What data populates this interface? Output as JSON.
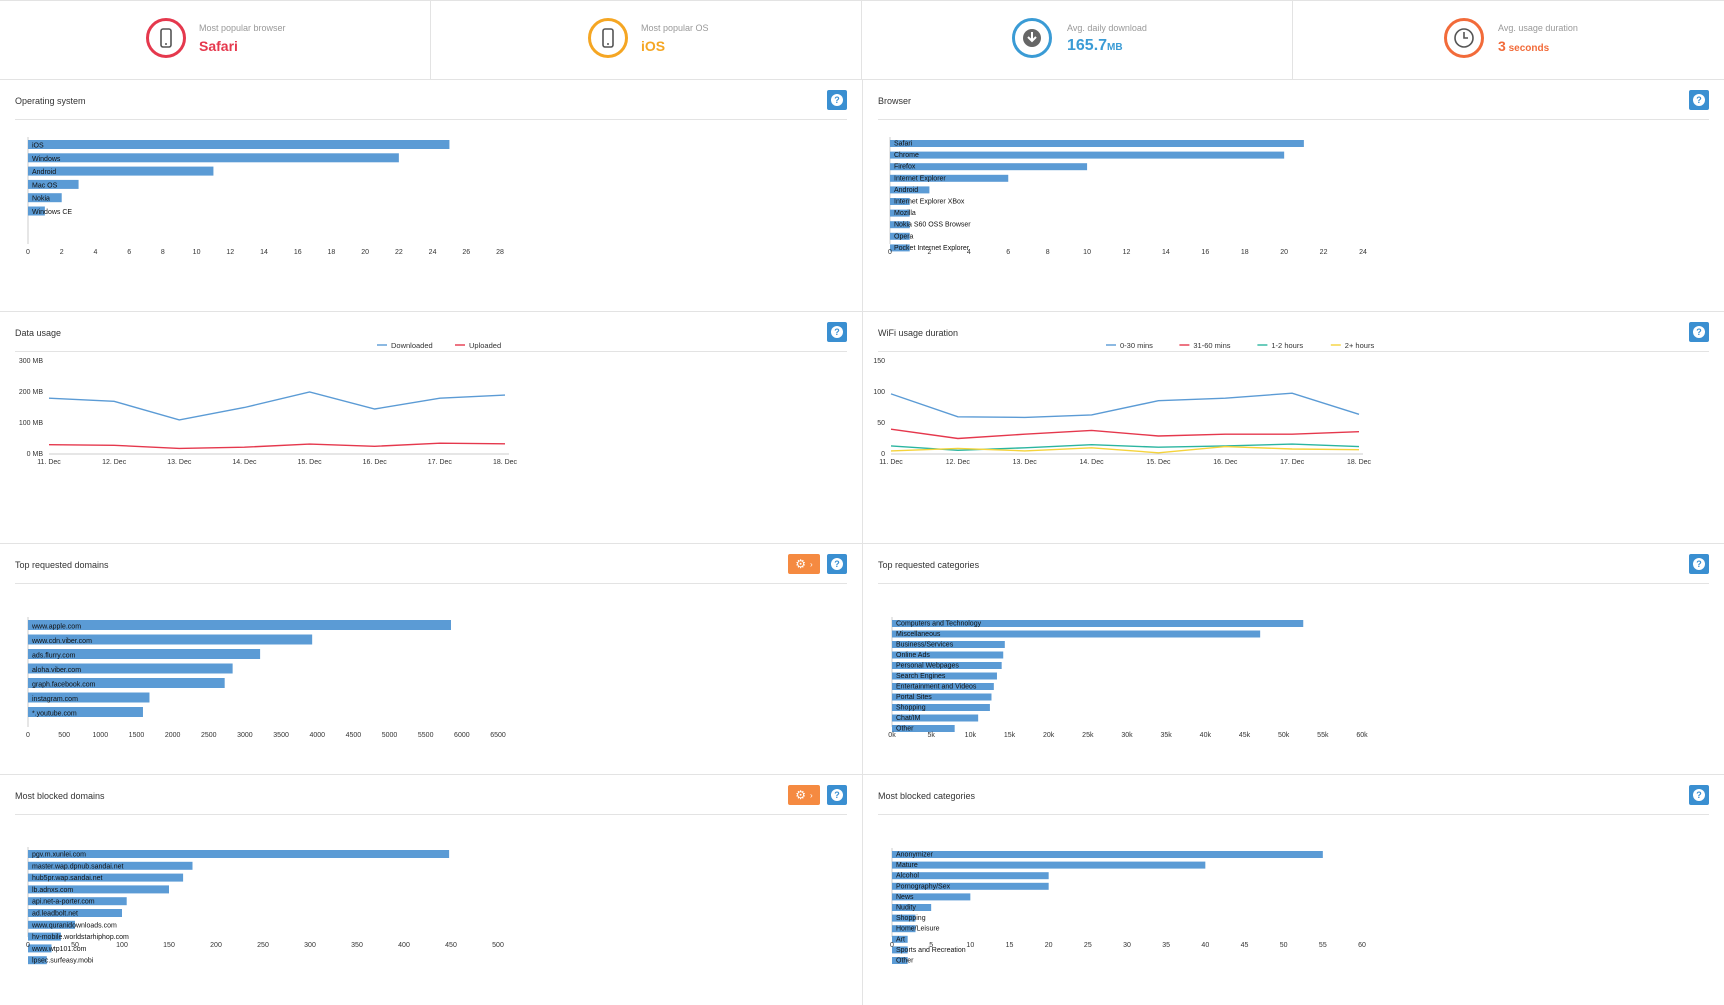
{
  "stats": [
    {
      "label": "Most popular browser",
      "value": "Safari",
      "unit": "",
      "color": "#e5384d",
      "icon": "phone-icon"
    },
    {
      "label": "Most popular OS",
      "value": "iOS",
      "unit": "",
      "color": "#f5a623",
      "icon": "phone-icon"
    },
    {
      "label": "Avg. daily download",
      "value": "165.7",
      "unit": "MB",
      "color": "#3a9bd5",
      "icon": "download-icon"
    },
    {
      "label": "Avg. usage duration",
      "value": "3",
      "unit": " seconds",
      "color": "#f26b3a",
      "icon": "clock-icon"
    }
  ],
  "panels": {
    "os": {
      "title": "Operating system"
    },
    "browser": {
      "title": "Browser"
    },
    "data_usage": {
      "title": "Data usage"
    },
    "wifi": {
      "title": "WiFi usage duration"
    },
    "domains": {
      "title": "Top requested domains"
    },
    "categories": {
      "title": "Top requested categories"
    },
    "blocked_domains": {
      "title": "Most blocked domains"
    },
    "blocked_categories": {
      "title": "Most blocked categories"
    }
  },
  "help_label": "?",
  "chart_data": [
    {
      "id": "os",
      "type": "bar",
      "orientation": "horizontal",
      "bar_color": "#5b9bd5",
      "categories": [
        "iOS",
        "Windows",
        "Android",
        "Mac OS",
        "Nokia",
        "Windows CE"
      ],
      "values": [
        25,
        22,
        11,
        3,
        2,
        1
      ],
      "xlim": [
        0,
        28
      ],
      "ticks": [
        0,
        2,
        4,
        6,
        8,
        10,
        12,
        14,
        16,
        18,
        20,
        22,
        24,
        26,
        28
      ],
      "tick_labels": [
        "0",
        "2",
        "4",
        "6",
        "8",
        "10",
        "12",
        "14",
        "16",
        "18",
        "20",
        "22",
        "24",
        "26",
        "28"
      ]
    },
    {
      "id": "browser",
      "type": "bar",
      "orientation": "horizontal",
      "bar_color": "#5b9bd5",
      "categories": [
        "Safari",
        "Chrome",
        "Firefox",
        "Internet Explorer",
        "Android",
        "Internet Explorer XBox",
        "Mozilla",
        "Nokia S60 OSS Browser",
        "Opera",
        "Pocket Internet Explorer"
      ],
      "values": [
        21,
        20,
        10,
        6,
        2,
        1,
        1,
        1,
        1,
        1
      ],
      "xlim": [
        0,
        24
      ],
      "ticks": [
        0,
        2,
        4,
        6,
        8,
        10,
        12,
        14,
        16,
        18,
        20,
        22,
        24
      ],
      "tick_labels": [
        "0",
        "2",
        "4",
        "6",
        "8",
        "10",
        "12",
        "14",
        "16",
        "18",
        "20",
        "22",
        "24"
      ]
    },
    {
      "id": "data_usage",
      "type": "line",
      "x": [
        "11. Dec",
        "12. Dec",
        "13. Dec",
        "14. Dec",
        "15. Dec",
        "16. Dec",
        "17. Dec",
        "18. Dec"
      ],
      "series": [
        {
          "name": "Downloaded",
          "color": "#5b9bd5",
          "values": [
            180,
            170,
            110,
            150,
            200,
            145,
            180,
            190
          ]
        },
        {
          "name": "Uploaded",
          "color": "#e5384d",
          "values": [
            30,
            28,
            18,
            22,
            32,
            25,
            35,
            33
          ]
        }
      ],
      "ylim": [
        0,
        300
      ],
      "yticks": [
        0,
        100,
        200,
        300
      ],
      "ytick_labels": [
        "0 MB",
        "100 MB",
        "200 MB",
        "300 MB"
      ],
      "legend": "top-right"
    },
    {
      "id": "wifi",
      "type": "line",
      "x": [
        "11. Dec",
        "12. Dec",
        "13. Dec",
        "14. Dec",
        "15. Dec",
        "16. Dec",
        "17. Dec",
        "18. Dec"
      ],
      "series": [
        {
          "name": "0-30 mins",
          "color": "#5b9bd5",
          "values": [
            97,
            60,
            59,
            63,
            86,
            90,
            98,
            64
          ]
        },
        {
          "name": "31-60 mins",
          "color": "#e5384d",
          "values": [
            40,
            25,
            32,
            38,
            29,
            32,
            32,
            36
          ]
        },
        {
          "name": "1-2 hours",
          "color": "#2bb5a0",
          "values": [
            13,
            6,
            10,
            15,
            11,
            13,
            16,
            12
          ]
        },
        {
          "name": "2+ hours",
          "color": "#f5d33b",
          "values": [
            5,
            9,
            5,
            10,
            2,
            12,
            8,
            7
          ]
        }
      ],
      "ylim": [
        0,
        150
      ],
      "yticks": [
        0,
        50,
        100,
        150
      ],
      "ytick_labels": [
        "0",
        "50",
        "100",
        "150"
      ],
      "legend": "top-right"
    },
    {
      "id": "domains",
      "type": "bar",
      "orientation": "horizontal",
      "bar_color": "#5b9bd5",
      "categories": [
        "www.apple.com",
        "www.cdn.viber.com",
        "ads.flurry.com",
        "aloha.viber.com",
        "graph.facebook.com",
        "instagram.com",
        "*.youtube.com"
      ],
      "values": [
        5850,
        3930,
        3210,
        2830,
        2720,
        1680,
        1590
      ],
      "xlim": [
        0,
        6500
      ],
      "ticks": [
        0,
        500,
        1000,
        1500,
        2000,
        2500,
        3000,
        3500,
        4000,
        4500,
        5000,
        5500,
        6000,
        6500
      ],
      "tick_labels": [
        "0",
        "500",
        "1000",
        "1500",
        "2000",
        "2500",
        "3000",
        "3500",
        "4000",
        "4500",
        "5000",
        "5500",
        "6000",
        "6500"
      ]
    },
    {
      "id": "categories",
      "type": "bar",
      "orientation": "horizontal",
      "bar_color": "#5b9bd5",
      "categories": [
        "Computers and Technology",
        "Miscellaneous",
        "Business/Services",
        "Online Ads",
        "Personal Webpages",
        "Search Engines",
        "Entertainment and Videos",
        "Portal Sites",
        "Shopping",
        "Chat/IM",
        "Other"
      ],
      "values": [
        52500,
        47000,
        14400,
        14200,
        14000,
        13400,
        13000,
        12700,
        12500,
        11000,
        8000
      ],
      "xlim": [
        0,
        60000
      ],
      "ticks": [
        0,
        5000,
        10000,
        15000,
        20000,
        25000,
        30000,
        35000,
        40000,
        45000,
        50000,
        55000,
        60000
      ],
      "tick_labels": [
        "0k",
        "5k",
        "10k",
        "15k",
        "20k",
        "25k",
        "30k",
        "35k",
        "40k",
        "45k",
        "50k",
        "55k",
        "60k"
      ]
    },
    {
      "id": "blocked_domains",
      "type": "bar",
      "orientation": "horizontal",
      "bar_color": "#5b9bd5",
      "categories": [
        "pgv.m.xunlei.com",
        "master.wap.dpnub.sandai.net",
        "hub5pr.wap.sandai.net",
        "lb.adnxs.com",
        "api.net-a-porter.com",
        "ad.leadbolt.net",
        "www.quranidownloads.com",
        "hv-mobile.worldstarhiphop.com",
        "www.wtp101.com",
        "lpsec.surfeasy.mobi"
      ],
      "values": [
        448,
        175,
        165,
        150,
        105,
        100,
        50,
        35,
        25,
        20
      ],
      "xlim": [
        0,
        500
      ],
      "ticks": [
        0,
        50,
        100,
        150,
        200,
        250,
        300,
        350,
        400,
        450,
        500
      ],
      "tick_labels": [
        "0",
        "50",
        "100",
        "150",
        "200",
        "250",
        "300",
        "350",
        "400",
        "450",
        "500"
      ]
    },
    {
      "id": "blocked_categories",
      "type": "bar",
      "orientation": "horizontal",
      "bar_color": "#5b9bd5",
      "categories": [
        "Anonymizer",
        "Mature",
        "Alcohol",
        "Pornography/Sex",
        "News",
        "Nudity",
        "Shopping",
        "Home/Leisure",
        "Art",
        "Sports and Recreation",
        "Other"
      ],
      "values": [
        55,
        40,
        20,
        20,
        10,
        5,
        3,
        3,
        2,
        2,
        2
      ],
      "xlim": [
        0,
        60
      ],
      "ticks": [
        0,
        5,
        10,
        15,
        20,
        25,
        30,
        35,
        40,
        45,
        50,
        55,
        60
      ],
      "tick_labels": [
        "0",
        "5",
        "10",
        "15",
        "20",
        "25",
        "30",
        "35",
        "40",
        "45",
        "50",
        "55",
        "60"
      ]
    }
  ]
}
